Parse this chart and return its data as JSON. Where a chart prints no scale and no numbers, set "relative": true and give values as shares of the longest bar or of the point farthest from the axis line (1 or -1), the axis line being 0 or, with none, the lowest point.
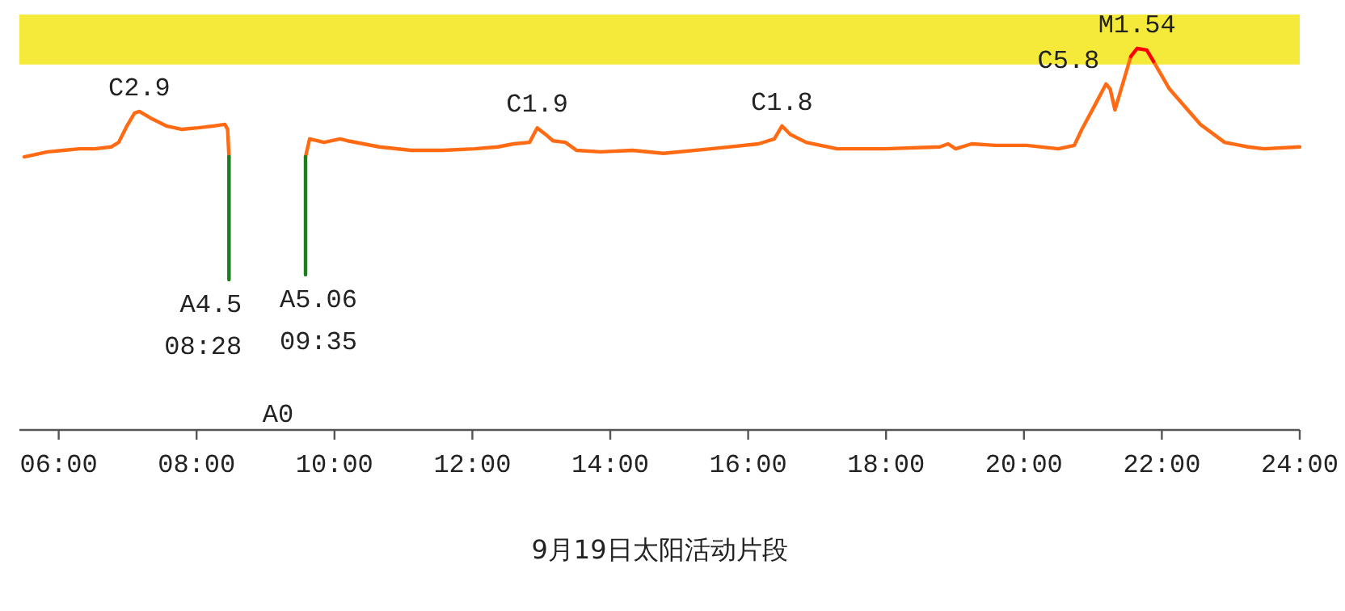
{
  "chart_data": {
    "type": "line",
    "relative": true,
    "xlabel": "9月19日太阳活动片段",
    "xlim": [
      5.43,
      24
    ],
    "xticks": [
      {
        "value": 6,
        "label": "06:00"
      },
      {
        "value": 8,
        "label": "08:00"
      },
      {
        "value": 10,
        "label": "10:00"
      },
      {
        "value": 12,
        "label": "12:00"
      },
      {
        "value": 14,
        "label": "14:00"
      },
      {
        "value": 16,
        "label": "16:00"
      },
      {
        "value": 18,
        "label": "18:00"
      },
      {
        "value": 20,
        "label": "20:00"
      },
      {
        "value": 22,
        "label": "22:00"
      },
      {
        "value": 24,
        "label": "24:00"
      }
    ],
    "bands": [
      {
        "axis": "y",
        "from": 0.958,
        "to": 1.089,
        "color": "#f5ea3a"
      }
    ],
    "series": [
      {
        "color": "#ff6a13",
        "x": [
          5.5,
          5.61,
          5.84,
          6.07,
          6.3,
          6.53,
          6.76,
          6.87,
          6.99,
          7.1,
          7.17,
          7.33,
          7.56,
          7.79,
          8.02,
          8.25,
          8.41,
          8.45,
          8.47,
          9.0,
          9.58,
          9.64,
          9.85,
          10.08,
          10.19,
          10.65,
          11.11,
          11.57,
          12.03,
          12.37,
          12.6,
          12.83,
          12.94,
          13.06,
          13.17,
          13.35,
          13.51,
          13.86,
          14.32,
          14.77,
          15.46,
          16.15,
          16.38,
          16.49,
          16.61,
          16.84,
          17.29,
          17.98,
          18.78,
          18.9,
          19.01,
          19.24,
          19.59,
          20.04,
          20.5,
          20.73,
          20.84,
          21.03,
          21.19,
          21.25,
          21.32,
          21.41,
          21.55,
          21.7,
          21.88,
          22.11,
          22.56,
          22.91,
          23.25,
          23.48,
          24.0
        ],
        "values": [
          0.716,
          0.72,
          0.729,
          0.733,
          0.737,
          0.737,
          0.742,
          0.754,
          0.797,
          0.831,
          0.835,
          0.818,
          0.797,
          0.788,
          0.792,
          0.797,
          0.801,
          0.788,
          0.716,
          null,
          0.716,
          0.763,
          0.754,
          0.763,
          0.758,
          0.742,
          0.733,
          0.733,
          0.737,
          0.742,
          0.75,
          0.754,
          0.792,
          0.775,
          0.758,
          0.754,
          0.733,
          0.729,
          0.733,
          0.725,
          0.737,
          0.75,
          0.763,
          0.797,
          0.775,
          0.754,
          0.737,
          0.737,
          0.742,
          0.75,
          0.737,
          0.75,
          0.746,
          0.746,
          0.737,
          0.746,
          0.788,
          0.852,
          0.907,
          0.894,
          0.839,
          0.894,
          0.979,
          null,
          0.966,
          0.894,
          0.801,
          0.754,
          0.742,
          0.737,
          0.742
        ]
      },
      {
        "color": "#ff0000",
        "x": [
          21.55,
          21.64,
          21.78,
          21.88
        ],
        "values": [
          0.979,
          1,
          0.996,
          0.966
        ]
      },
      {
        "color": "#1a7f1a",
        "x": [
          8.47,
          8.47,
          9.0,
          9.58,
          9.58
        ],
        "values": [
          0.716,
          0.394,
          null,
          0.407,
          0.716
        ]
      }
    ],
    "annotations": [
      {
        "text": "C2.9",
        "x": 7.17,
        "y": 0.835
      },
      {
        "text": "A4.5",
        "x": 8.47,
        "y": 0.394
      },
      {
        "text": "08:28",
        "x": 8.47,
        "y": 0.394
      },
      {
        "text": "A5.06",
        "x": 9.58,
        "y": 0.407
      },
      {
        "text": "09:35",
        "x": 9.58,
        "y": 0.407
      },
      "A0",
      {
        "text": "C1.9",
        "x": 12.94,
        "y": 0.792
      },
      {
        "text": "C1.8",
        "x": 16.49,
        "y": 0.797
      },
      {
        "text": "C5.8",
        "x": 21.19,
        "y": 0.907
      },
      {
        "text": "M1.54",
        "x": 21.64,
        "y": 1
      }
    ]
  }
}
